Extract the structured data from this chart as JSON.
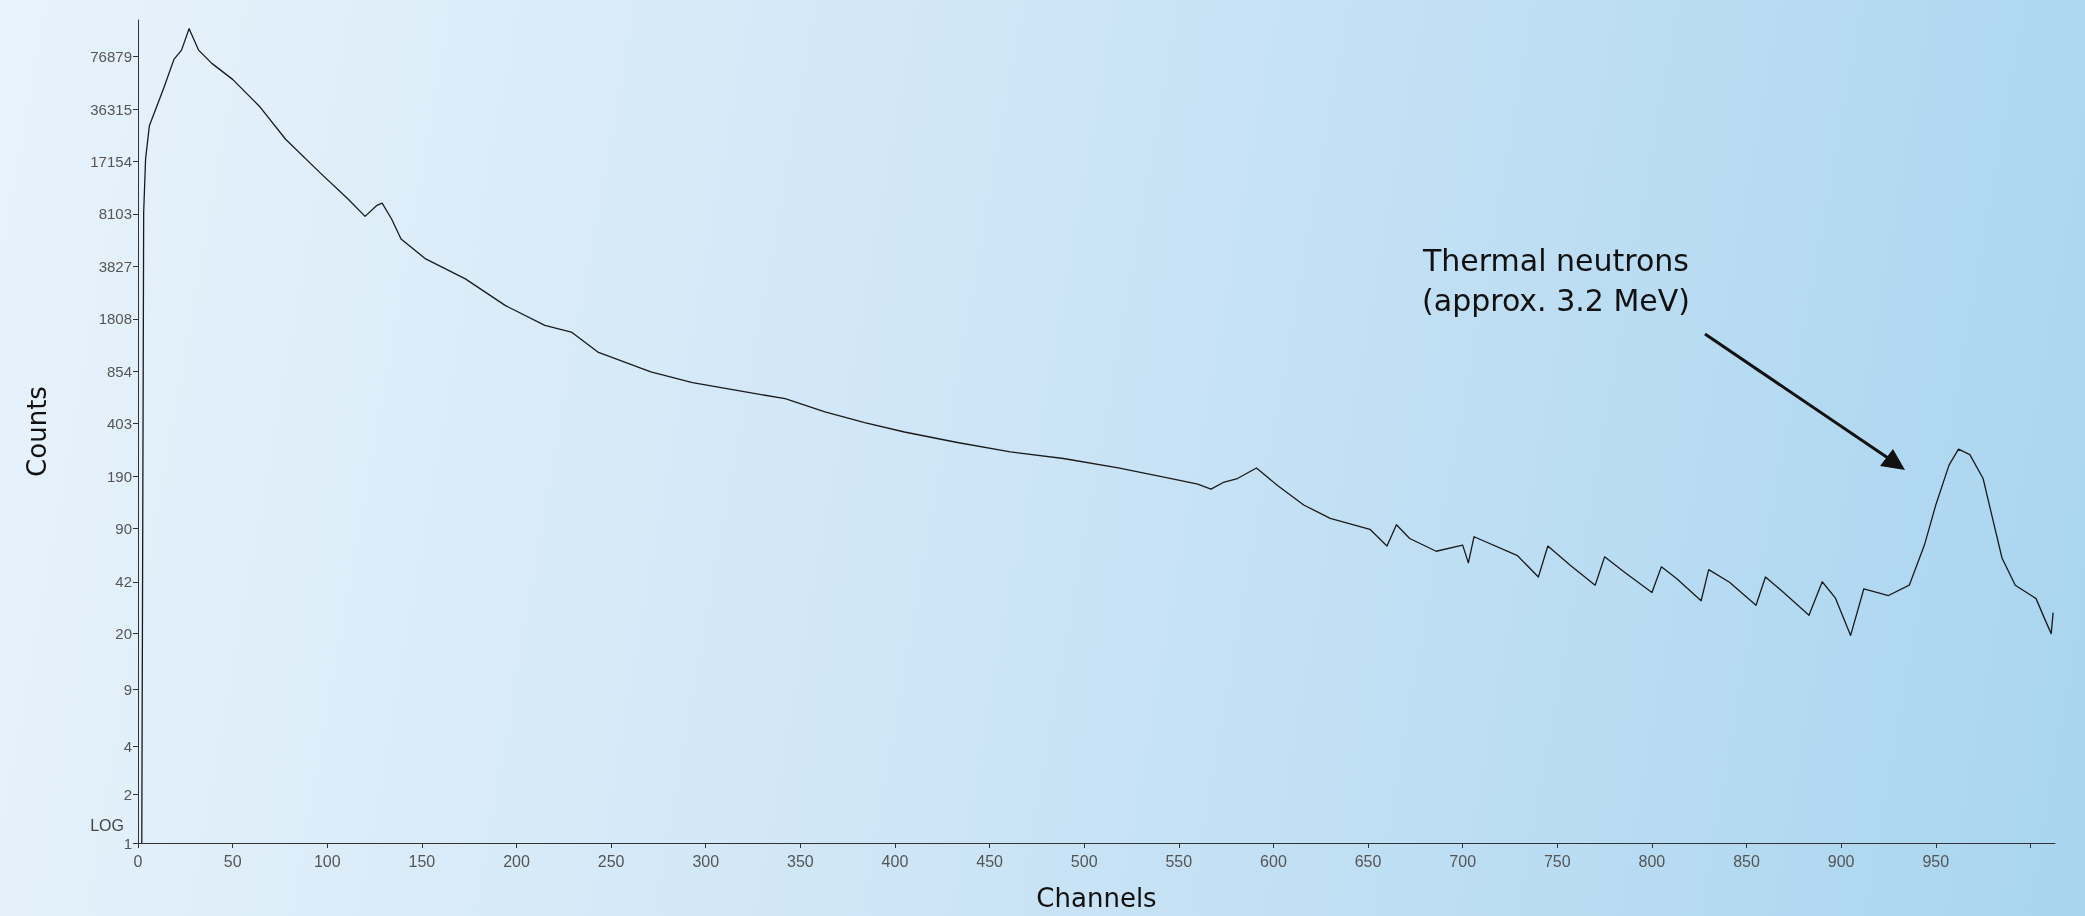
{
  "chart_data": {
    "type": "line",
    "xlabel": "Channels",
    "ylabel": "Counts",
    "log": "y",
    "marker": "none",
    "line_style": "solid",
    "xlim": [
      0,
      1013
    ],
    "ylim": [
      1,
      130000
    ],
    "xticks": [
      0,
      50,
      100,
      150,
      200,
      250,
      300,
      350,
      400,
      450,
      500,
      550,
      600,
      650,
      700,
      750,
      800,
      850,
      900,
      950,
      {
        "value": 1000,
        "label": null
      }
    ],
    "yticks": [
      1,
      2,
      4,
      9,
      20,
      42,
      90,
      190,
      403,
      854,
      1808,
      3827,
      8103,
      17154,
      36315,
      76879
    ],
    "annotations": [
      "LOG",
      "Thermal neutrons\n(approx. 3.2 MeV)"
    ],
    "series": [
      {
        "color": "#1a1a1a",
        "x": [
          2,
          3,
          4,
          6,
          10,
          14,
          19,
          23,
          27,
          32,
          39,
          50,
          64,
          78,
          96,
          111,
          120,
          126,
          129,
          134,
          139,
          152,
          173,
          194,
          215,
          229,
          243,
          271,
          293,
          321,
          342,
          363,
          384,
          405,
          433,
          461,
          489,
          518,
          546,
          560,
          567,
          574,
          581,
          591,
          602,
          616,
          630,
          651,
          660,
          665,
          672,
          686,
          700,
          703,
          706,
          729,
          740,
          745,
          757,
          770,
          775,
          785,
          800,
          805,
          813,
          826,
          830,
          841,
          855,
          860,
          869,
          883,
          890,
          897,
          905,
          912,
          925,
          936,
          944,
          950,
          957,
          962,
          968,
          975,
          980,
          985,
          992,
          1003,
          1008,
          1011,
          1012
        ],
        "values": [
          1,
          8290,
          17750,
          28600,
          38000,
          50600,
          74000,
          84500,
          114800,
          84500,
          69900,
          55600,
          38000,
          23600,
          14700,
          10030,
          7830,
          9120,
          9470,
          7540,
          5660,
          4260,
          3200,
          2190,
          1645,
          1495,
          1124,
          845,
          725,
          635,
          577,
          477,
          410,
          358,
          308,
          269,
          245,
          214,
          184,
          170,
          158,
          175,
          184,
          214,
          167,
          126,
          104,
          89,
          70,
          95,
          78,
          65,
          71,
          55,
          80,
          61,
          45,
          70,
          53,
          40,
          60,
          48.6,
          36,
          52,
          44,
          32,
          50,
          41.7,
          30,
          45,
          36.5,
          26,
          42,
          33.2,
          19.5,
          38,
          34.5,
          40,
          71,
          126,
          223,
          280,
          259,
          184,
          104,
          59,
          40,
          33,
          24,
          20,
          27
        ]
      }
    ]
  }
}
